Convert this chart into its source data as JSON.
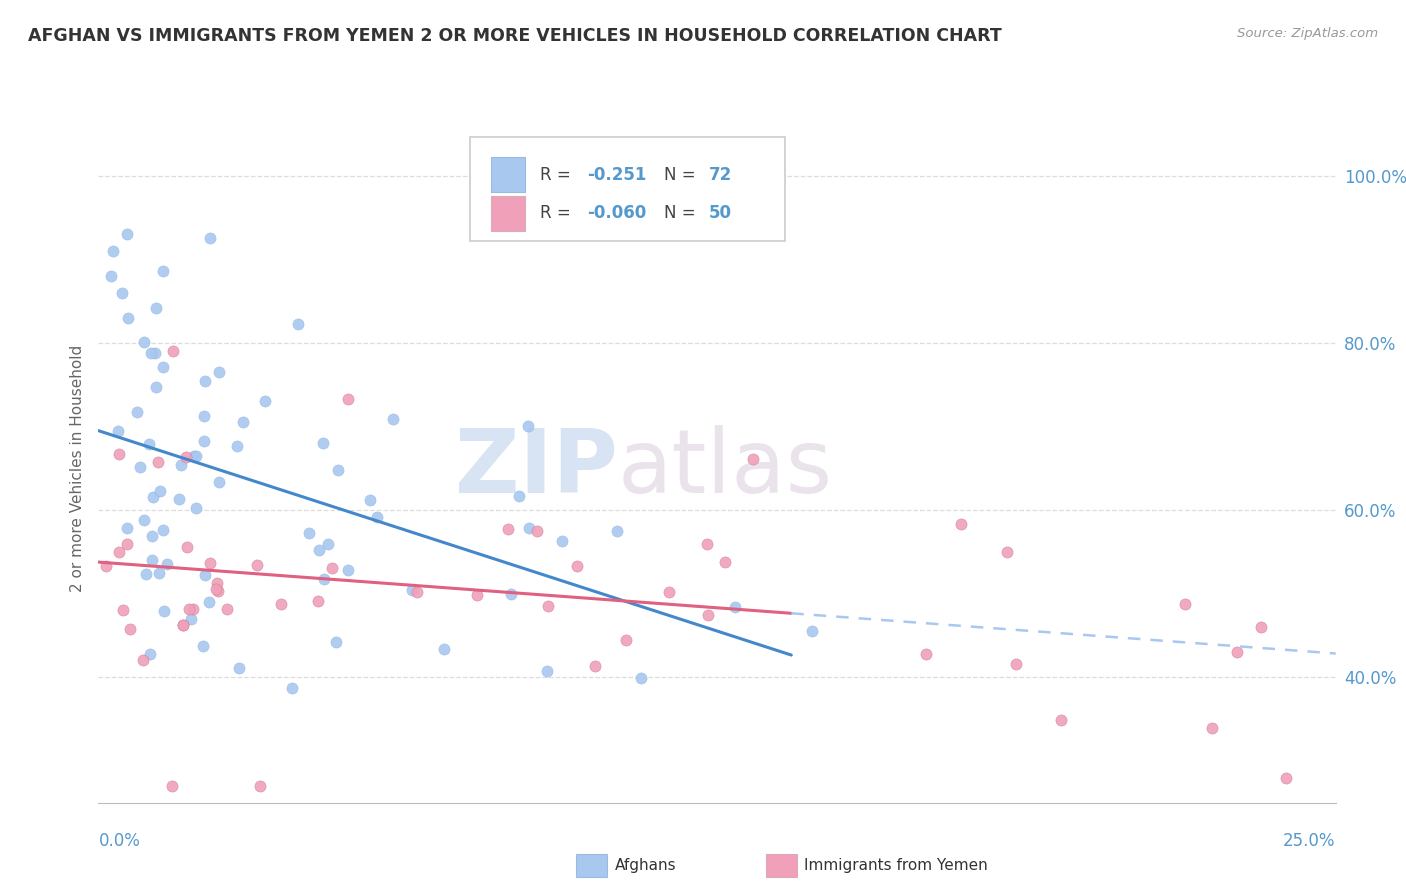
{
  "title": "AFGHAN VS IMMIGRANTS FROM YEMEN 2 OR MORE VEHICLES IN HOUSEHOLD CORRELATION CHART",
  "source": "Source: ZipAtlas.com",
  "ylabel": "2 or more Vehicles in Household",
  "xmin": 0.0,
  "xmax": 25.0,
  "ymin": 25.0,
  "ymax": 105.0,
  "yticks": [
    40.0,
    60.0,
    80.0,
    100.0
  ],
  "ytick_labels": [
    "40.0%",
    "60.0%",
    "80.0%",
    "100.0%"
  ],
  "afghan_color": "#a8c8f0",
  "afghan_line_color": "#4488cc",
  "yemen_color": "#f0a0b8",
  "yemen_line_color": "#e06080",
  "afghan_R": -0.251,
  "afghan_N": 72,
  "yemen_R": -0.06,
  "yemen_N": 50,
  "bottom_legend1": "Afghans",
  "bottom_legend2": "Immigrants from Yemen",
  "watermark_zip": "ZIP",
  "watermark_atlas": "atlas",
  "background_color": "#ffffff",
  "grid_color": "#dddddd",
  "tick_color": "#5599cc",
  "title_color": "#333333",
  "source_color": "#999999",
  "ylabel_color": "#666666"
}
